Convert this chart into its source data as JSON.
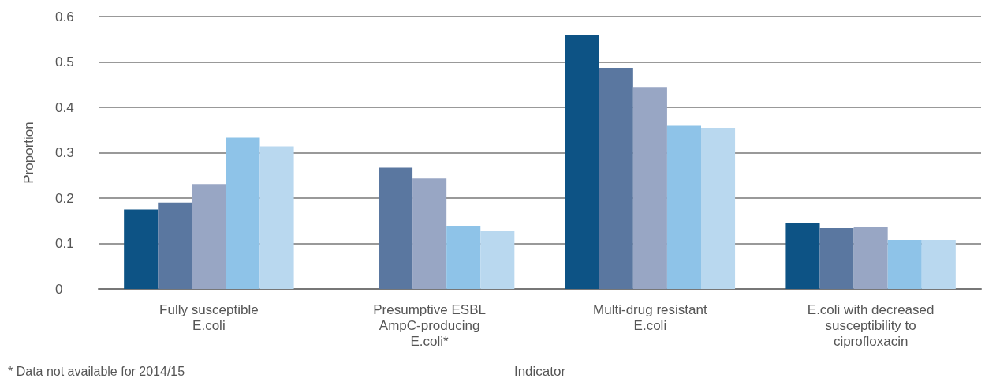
{
  "chart_data": {
    "type": "bar",
    "xlabel": "Indicator",
    "ylabel": "Proportion",
    "categories": [
      "Fully susceptible\nE.coli",
      "Presumptive ESBL\nAmpC-producing\nE.coli*",
      "Multi-drug resistant\nE.coli",
      "E.coli with decreased\nsusceptibility to\nciprofloxacin"
    ],
    "series": [
      {
        "color": "#0d5385",
        "values": [
          0.175,
          null,
          0.56,
          0.146
        ]
      },
      {
        "color": "#5a77a0",
        "values": [
          0.19,
          0.267,
          0.487,
          0.134
        ]
      },
      {
        "color": "#98a6c4",
        "values": [
          0.231,
          0.243,
          0.445,
          0.136
        ]
      },
      {
        "color": "#8ec3e8",
        "values": [
          0.333,
          0.139,
          0.359,
          0.108
        ]
      },
      {
        "color": "#b9d8ef",
        "values": [
          0.314,
          0.127,
          0.355,
          0.108
        ]
      }
    ],
    "ylim": [
      0,
      0.6
    ],
    "yticks": [
      0,
      0.1,
      0.2,
      0.3,
      0.4,
      0.5,
      0.6
    ],
    "grid": "y",
    "annotations": [
      "* Data not available for 2014/15"
    ]
  }
}
